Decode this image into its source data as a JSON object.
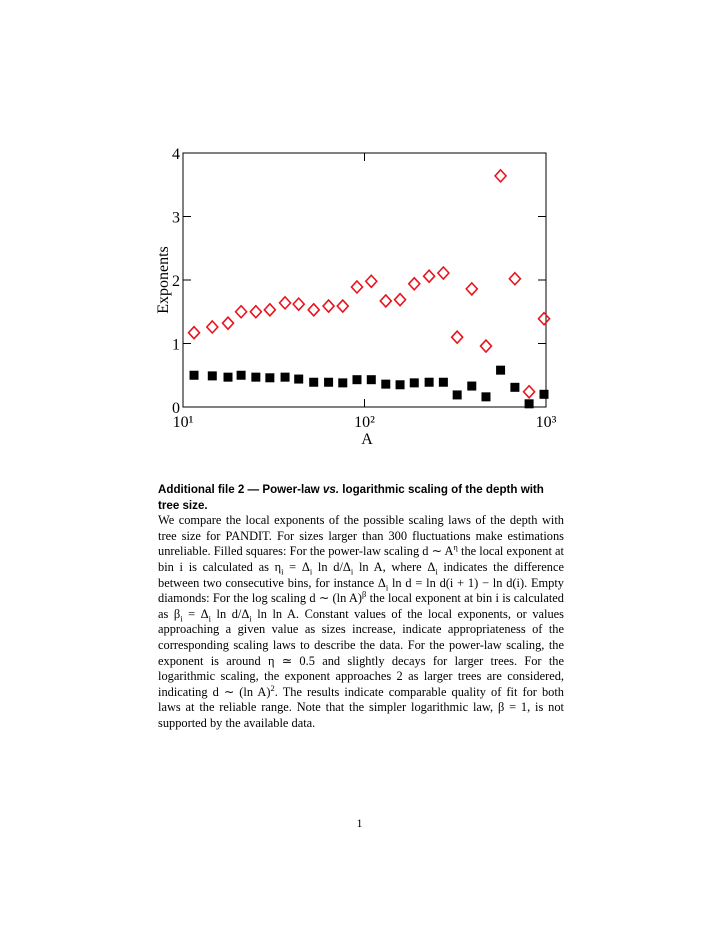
{
  "chart_data": {
    "type": "scatter",
    "xlabel": "A",
    "ylabel": "Exponents",
    "xscale": "log",
    "xlim": [
      10,
      1000
    ],
    "ylim": [
      0,
      4
    ],
    "xticks": [
      {
        "value": 10,
        "label": "10¹"
      },
      {
        "value": 100,
        "label": "10²"
      },
      {
        "value": 1000,
        "label": "10³"
      }
    ],
    "yticks": [
      0,
      1,
      2,
      3,
      4
    ],
    "series": [
      {
        "marker": "open-diamond",
        "color": "#e8141e",
        "x": [
          11.5,
          14.5,
          17.7,
          20.9,
          25.2,
          30.1,
          36.5,
          43.4,
          52.5,
          63.4,
          75.9,
          90.9,
          109,
          131,
          157,
          188,
          227,
          272,
          324,
          390,
          467,
          562,
          674,
          807,
          975
        ],
        "values": [
          1.17,
          1.26,
          1.32,
          1.5,
          1.5,
          1.53,
          1.64,
          1.62,
          1.53,
          1.59,
          1.59,
          1.89,
          1.98,
          1.67,
          1.69,
          1.94,
          2.06,
          2.11,
          1.1,
          1.86,
          0.96,
          3.64,
          2.02,
          0.24,
          1.39
        ]
      },
      {
        "marker": "filled-square",
        "color": "#000000",
        "x": [
          11.5,
          14.5,
          17.7,
          20.9,
          25.2,
          30.1,
          36.5,
          43.4,
          52.5,
          63.4,
          75.9,
          90.9,
          109,
          131,
          157,
          188,
          227,
          272,
          324,
          390,
          467,
          562,
          674,
          807,
          975
        ],
        "values": [
          0.5,
          0.49,
          0.47,
          0.5,
          0.47,
          0.46,
          0.47,
          0.44,
          0.39,
          0.39,
          0.38,
          0.43,
          0.43,
          0.36,
          0.35,
          0.38,
          0.39,
          0.39,
          0.19,
          0.33,
          0.16,
          0.58,
          0.31,
          0.05,
          0.2
        ]
      }
    ]
  },
  "caption": {
    "heading": [
      "Additional file 2 — Power-law ",
      "vs.",
      " logarithmic scaling of the depth with tree size."
    ],
    "body": [
      "We compare the local exponents of the possible scaling laws of the depth with tree size for PANDIT. For sizes larger than 300 fluctuations make estimations unreliable. Filled squares: For the power-law scaling ",
      "d ∼ A",
      "η",
      " the local exponent at bin i is calculated as η",
      "i",
      " = Δ",
      "i",
      " ln d/Δ",
      "i",
      " ln A, where Δ",
      "i",
      " indicates the difference between two consecutive bins, for instance Δ",
      "i",
      " ln d = ln d(i + 1) − ln d(i). Empty diamonds: For the log scaling d ∼ (ln A)",
      "β",
      " the local exponent at bin i is calculated as β",
      "i",
      " = Δ",
      "i",
      " ln d/Δ",
      "i",
      " ln ln A. Constant values of the local exponents, or values approaching a given value as sizes increase, indicate appropriateness of the corresponding scaling laws to describe the data. For the power-law scaling, the exponent is around η ≃ 0.5 and slightly decays for larger trees. For the logarithmic scaling, the exponent approaches 2 as larger trees are considered, indicating d ∼ (ln A)",
      "2",
      ". The results indicate comparable quality of fit for both laws at the reliable range. Note that the simpler logarithmic law, β = 1, is not supported by the available data."
    ]
  },
  "page_number": "1"
}
